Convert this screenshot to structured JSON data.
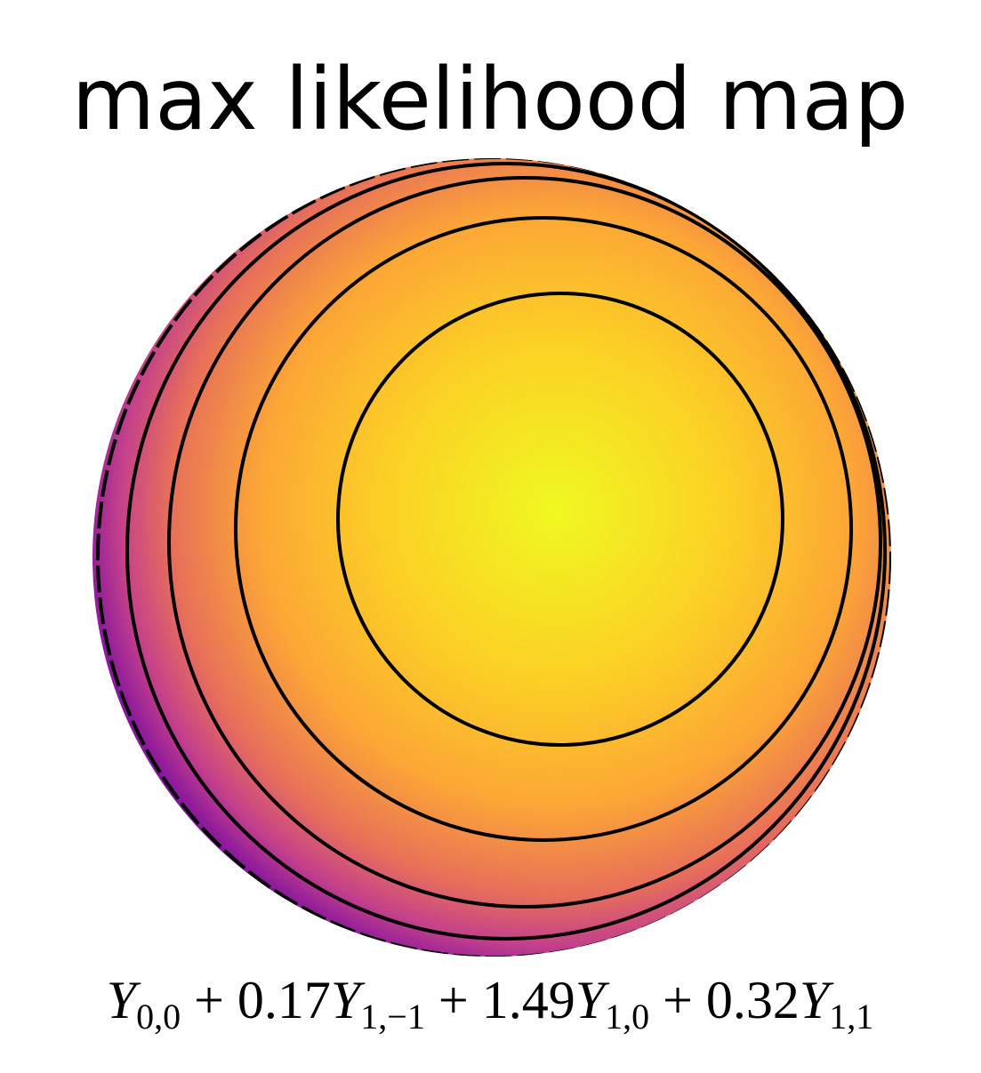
{
  "title": "max likelihood map",
  "caption": {
    "terms": [
      {
        "symbol": "Y",
        "sub": "0,0"
      },
      {
        "sign": "+",
        "coef": "0.17",
        "symbol": "Y",
        "sub": "1,−1"
      },
      {
        "sign": "+",
        "coef": "1.49",
        "symbol": "Y",
        "sub": "1,0"
      },
      {
        "sign": "+",
        "coef": "0.32",
        "symbol": "Y",
        "sub": "1,1"
      }
    ]
  }
}
